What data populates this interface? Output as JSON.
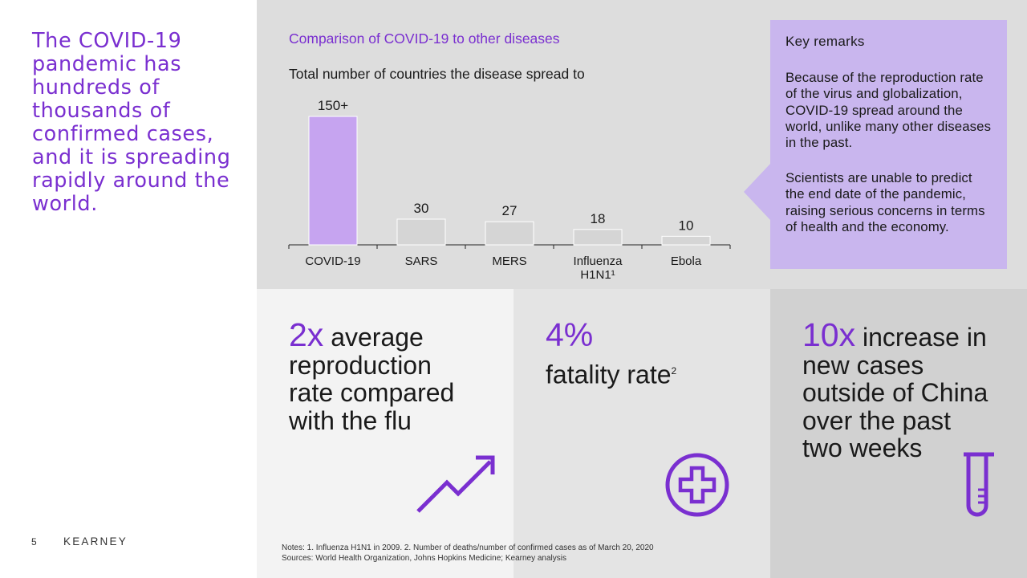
{
  "headline": "The COVID-19 pandemic has hundreds of thousands of confirmed cases, and it is spreading rapidly around the world.",
  "chart_title": "Comparison of COVID-19 to other diseases",
  "chart_subtitle": "Total number of countries the disease spread to",
  "chart_data": {
    "type": "bar",
    "title": "Comparison of COVID-19 to other diseases",
    "subtitle": "Total number of countries the disease spread to",
    "categories": [
      "COVID-19",
      "SARS",
      "MERS",
      "Influenza H1N1¹",
      "Ebola"
    ],
    "category_lines": [
      [
        "COVID-19"
      ],
      [
        "SARS"
      ],
      [
        "MERS"
      ],
      [
        "Influenza",
        "H1N1¹"
      ],
      [
        "Ebola"
      ]
    ],
    "values": [
      150,
      30,
      27,
      18,
      10
    ],
    "value_labels": [
      "150+",
      "30",
      "27",
      "18",
      "10"
    ],
    "ylim": [
      0,
      150
    ],
    "bar_colors": [
      "#c6a4f0",
      "#d5d5d5",
      "#d5d5d5",
      "#d5d5d5",
      "#d5d5d5"
    ],
    "grid": false
  },
  "remarks": {
    "title": "Key remarks",
    "p1": "Because of the reproduction rate of the virus and globalization, COVID-19 spread around the world, unlike many other diseases in the past.",
    "p2": "Scientists are unable to predict the end date of the pandemic, raising serious concerns in terms of health and the economy."
  },
  "stats": {
    "a_big": "2x",
    "a_line1_rest": "average",
    "a_line2": "reproduction",
    "a_line3": "rate compared",
    "a_line4": "with the flu",
    "b_big": "4%",
    "b_text": "fatality rate",
    "b_sup": "2",
    "c_big": "10x",
    "c_line1_rest": "increase in",
    "c_line2": "new cases",
    "c_line3": "outside of China",
    "c_line4": "over the past",
    "c_line5": "two weeks"
  },
  "icons": {
    "a": "trend-up-arrow-icon",
    "b": "medical-cross-icon",
    "c": "test-tube-icon"
  },
  "colors": {
    "accent": "#7a2fd0",
    "remarks_bg": "#c9b6ee"
  },
  "footer": {
    "page_number": "5",
    "logo": "KEARNEY",
    "notes": "Notes: 1. Influenza H1N1 in 2009. 2. Number of deaths/number of confirmed cases as of March 20, 2020",
    "sources": "Sources: World Health Organization, Johns Hopkins Medicine; Kearney analysis"
  }
}
